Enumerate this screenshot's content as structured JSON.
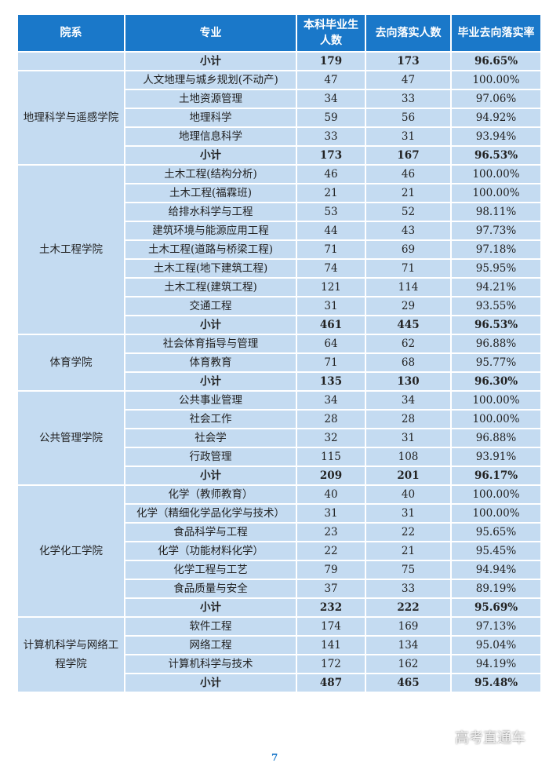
{
  "header": [
    "院系",
    "专业",
    "本科毕业生人数",
    "去向落实人数",
    "毕业去向落实率"
  ],
  "groups": [
    {
      "college": "",
      "rows": [
        [
          "小计",
          "179",
          "173",
          "96.65%"
        ]
      ]
    },
    {
      "college": "地理科学与遥感学院",
      "rows": [
        [
          "人文地理与城乡规划(不动产)",
          "47",
          "47",
          "100.00%"
        ],
        [
          "土地资源管理",
          "34",
          "33",
          "97.06%"
        ],
        [
          "地理科学",
          "59",
          "56",
          "94.92%"
        ],
        [
          "地理信息科学",
          "33",
          "31",
          "93.94%"
        ],
        [
          "小计",
          "173",
          "167",
          "96.53%"
        ]
      ]
    },
    {
      "college": "土木工程学院",
      "rows": [
        [
          "土木工程(结构分析)",
          "46",
          "46",
          "100.00%"
        ],
        [
          "土木工程(福霖班)",
          "21",
          "21",
          "100.00%"
        ],
        [
          "给排水科学与工程",
          "53",
          "52",
          "98.11%"
        ],
        [
          "建筑环境与能源应用工程",
          "44",
          "43",
          "97.73%"
        ],
        [
          "土木工程(道路与桥梁工程)",
          "71",
          "69",
          "97.18%"
        ],
        [
          "土木工程(地下建筑工程)",
          "74",
          "71",
          "95.95%"
        ],
        [
          "土木工程(建筑工程)",
          "121",
          "114",
          "94.21%"
        ],
        [
          "交通工程",
          "31",
          "29",
          "93.55%"
        ],
        [
          "小计",
          "461",
          "445",
          "96.53%"
        ]
      ]
    },
    {
      "college": "体育学院",
      "rows": [
        [
          "社会体育指导与管理",
          "64",
          "62",
          "96.88%"
        ],
        [
          "体育教育",
          "71",
          "68",
          "95.77%"
        ],
        [
          "小计",
          "135",
          "130",
          "96.30%"
        ]
      ]
    },
    {
      "college": "公共管理学院",
      "rows": [
        [
          "公共事业管理",
          "34",
          "34",
          "100.00%"
        ],
        [
          "社会工作",
          "28",
          "28",
          "100.00%"
        ],
        [
          "社会学",
          "32",
          "31",
          "96.88%"
        ],
        [
          "行政管理",
          "115",
          "108",
          "93.91%"
        ],
        [
          "小计",
          "209",
          "201",
          "96.17%"
        ]
      ]
    },
    {
      "college": "化学化工学院",
      "rows": [
        [
          "化学（教师教育）",
          "40",
          "40",
          "100.00%"
        ],
        [
          "化学（精细化学品化学与技术）",
          "31",
          "31",
          "100.00%"
        ],
        [
          "食品科学与工程",
          "23",
          "22",
          "95.65%"
        ],
        [
          "化学（功能材料化学）",
          "22",
          "21",
          "95.45%"
        ],
        [
          "化学工程与工艺",
          "79",
          "75",
          "94.94%"
        ],
        [
          "食品质量与安全",
          "37",
          "33",
          "89.19%"
        ],
        [
          "小计",
          "232",
          "222",
          "95.69%"
        ]
      ]
    },
    {
      "college": "计算机科学与网络工程学院",
      "rows": [
        [
          "软件工程",
          "174",
          "169",
          "97.13%"
        ],
        [
          "网络工程",
          "141",
          "134",
          "95.04%"
        ],
        [
          "计算机科学与技术",
          "172",
          "162",
          "94.19%"
        ],
        [
          "小计",
          "487",
          "465",
          "95.48%"
        ]
      ]
    }
  ],
  "subtotal_label": "小计",
  "page_number": "7",
  "watermark": "高考直通车",
  "colors": {
    "header": "#1a78c9",
    "cell": "#c4dbf1"
  }
}
